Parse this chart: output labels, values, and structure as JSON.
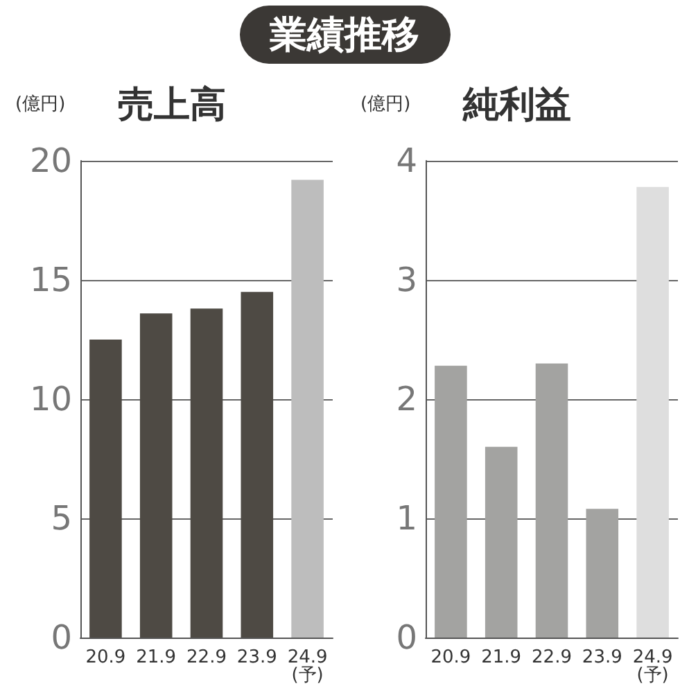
{
  "chart_data": [
    {
      "type": "bar",
      "title": "売上高",
      "ylabel": "(億円)",
      "annotations": [
        "業績推移"
      ],
      "categories": [
        "20.9",
        "21.9",
        "22.9",
        "23.9",
        "24.9\n(予)"
      ],
      "values": [
        12.5,
        13.6,
        13.8,
        14.5,
        19.2
      ],
      "colors": [
        "#4e4a44",
        "#4e4a44",
        "#4e4a44",
        "#4e4a44",
        "#bdbdbd"
      ],
      "ylim": [
        0,
        20
      ],
      "yticks": [
        0,
        5,
        10,
        15,
        20
      ],
      "grid": "y"
    },
    {
      "type": "bar",
      "title": "純利益",
      "ylabel": "(億円)",
      "categories": [
        "20.9",
        "21.9",
        "22.9",
        "23.9",
        "24.9\n(予)"
      ],
      "values": [
        2.28,
        1.6,
        2.3,
        1.08,
        3.78
      ],
      "colors": [
        "#a3a3a1",
        "#a3a3a1",
        "#a3a3a1",
        "#a3a3a1",
        "#dedede"
      ],
      "ylim": [
        0,
        4
      ],
      "yticks": [
        0,
        1,
        2,
        3,
        4
      ],
      "grid": "y"
    }
  ]
}
